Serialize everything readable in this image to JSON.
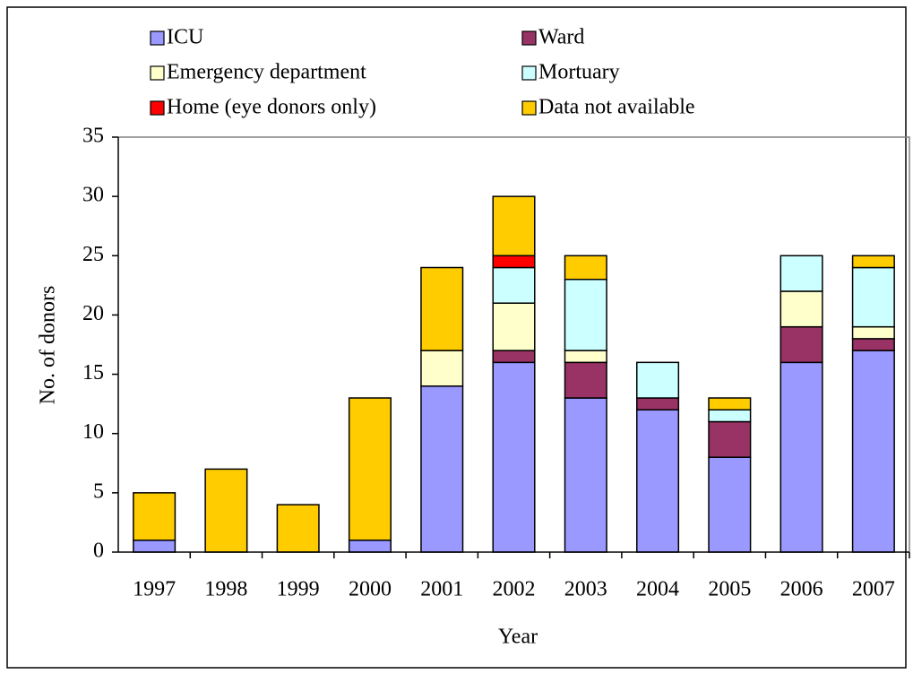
{
  "chart_data": {
    "type": "bar",
    "stacked": true,
    "y_label": "No. of donors",
    "x_label": "Year",
    "categories": [
      "1997",
      "1998",
      "1999",
      "2000",
      "2001",
      "2002",
      "2003",
      "2004",
      "2005",
      "2006",
      "2007"
    ],
    "series": [
      {
        "name": "ICU",
        "color": "#9999ff",
        "values": [
          1,
          0,
          0,
          1,
          14,
          16,
          13,
          12,
          8,
          16,
          17
        ]
      },
      {
        "name": "Ward",
        "color": "#993366",
        "values": [
          0,
          0,
          0,
          0,
          0,
          1,
          3,
          1,
          3,
          3,
          1
        ]
      },
      {
        "name": "Emergency department",
        "color": "#ffffcc",
        "values": [
          0,
          0,
          0,
          0,
          3,
          4,
          1,
          0,
          0,
          3,
          1
        ]
      },
      {
        "name": "Mortuary",
        "color": "#ccffff",
        "values": [
          0,
          0,
          0,
          0,
          0,
          3,
          6,
          3,
          1,
          3,
          5
        ]
      },
      {
        "name": "Home (eye donors only)",
        "color": "#ff0000",
        "values": [
          0,
          0,
          0,
          0,
          0,
          1,
          0,
          0,
          0,
          0,
          0
        ]
      },
      {
        "name": "Data not available",
        "color": "#ffcc00",
        "values": [
          4,
          7,
          4,
          12,
          7,
          5,
          2,
          0,
          1,
          0,
          1
        ]
      }
    ],
    "ylim": [
      0,
      35
    ],
    "yticks": [
      0,
      5,
      10,
      15,
      20,
      25,
      30,
      35
    ]
  }
}
